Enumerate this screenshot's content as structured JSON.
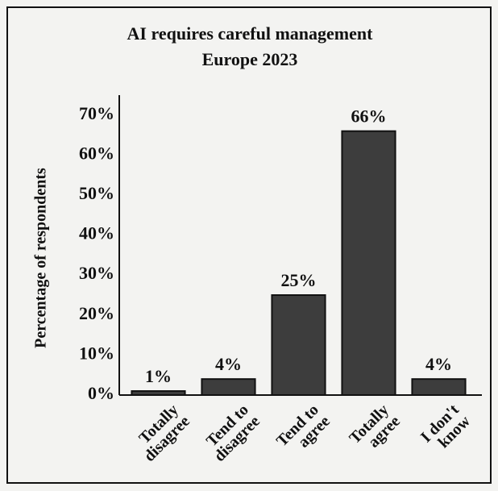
{
  "chart_data": {
    "type": "bar",
    "title": "AI requires careful management",
    "subtitle": "Europe 2023",
    "y_label": "Percentage of respondents",
    "categories": [
      "Totally disagree",
      "Tend to disagree",
      "Tend to agree",
      "Totally agree",
      "I don't know"
    ],
    "values": [
      1,
      4,
      25,
      66,
      4
    ],
    "value_labels": [
      "1%",
      "4%",
      "25%",
      "66%",
      "4%"
    ],
    "color": "#3d3d3d",
    "ylim": [
      0,
      75
    ],
    "yticks": [
      {
        "value": 0,
        "label": "0%"
      },
      {
        "value": 10,
        "label": "10%"
      },
      {
        "value": 20,
        "label": "20%"
      },
      {
        "value": 30,
        "label": "30%"
      },
      {
        "value": 40,
        "label": "40%"
      },
      {
        "value": 50,
        "label": "50%"
      },
      {
        "value": 60,
        "label": "60%"
      },
      {
        "value": 70,
        "label": "70%"
      }
    ],
    "grid": false
  }
}
